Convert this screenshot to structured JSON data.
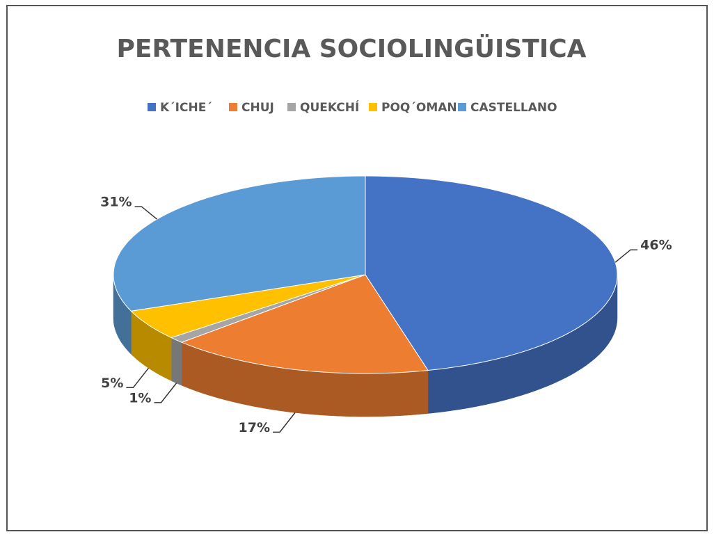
{
  "chart_data": {
    "type": "pie3d",
    "title": "PERTENENCIA SOCIOLINGÜISTICA",
    "categories": [
      "K´ICHE´",
      "CHUJ",
      "QUEKCHÍ",
      "POQ´OMAN",
      "CASTELLANO"
    ],
    "values": [
      46,
      17,
      1,
      5,
      31
    ],
    "value_labels": [
      "46%",
      "17%",
      "1%",
      "5%",
      "31%"
    ],
    "colors": [
      "#4472c4",
      "#ed7d31",
      "#a5a5a5",
      "#ffc000",
      "#5b9bd5"
    ],
    "legend": "top"
  }
}
